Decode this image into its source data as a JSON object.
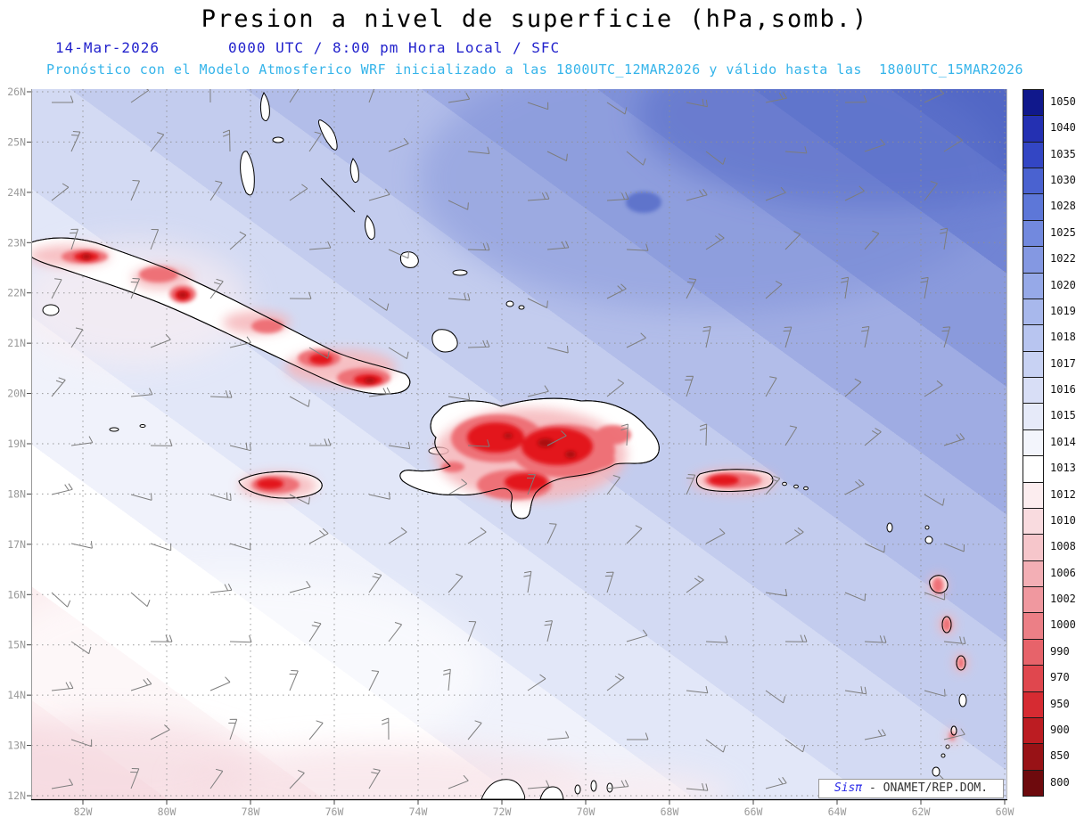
{
  "header": {
    "title": "Presion a nivel de superficie (hPa,somb.)",
    "date": "14-Mar-2026",
    "time": "0000 UTC / 8:00 pm Hora Local / SFC",
    "model_line": "Pronóstico con el Modelo Atmosferico WRF inicializado a las 1800UTC_12MAR2026 y válido hasta las  1800UTC_15MAR2026"
  },
  "map": {
    "lat_labels": [
      "26N",
      "25N",
      "24N",
      "23N",
      "22N",
      "21N",
      "20N",
      "19N",
      "18N",
      "17N",
      "16N",
      "15N",
      "14N",
      "13N",
      "12N"
    ],
    "lon_labels": [
      "82W",
      "80W",
      "78W",
      "76W",
      "74W",
      "72W",
      "70W",
      "68W",
      "66W",
      "64W",
      "62W",
      "60W"
    ],
    "credit": {
      "brand": "Sisπ",
      "org": "- ONAMET/REP.DOM."
    }
  },
  "colorbar": {
    "labels": [
      "1050",
      "1040",
      "1035",
      "1030",
      "1028",
      "1025",
      "1022",
      "1020",
      "1019",
      "1018",
      "1017",
      "1016",
      "1015",
      "1014",
      "1013",
      "1012",
      "1010",
      "1008",
      "1006",
      "1002",
      "1000",
      "990",
      "970",
      "950",
      "900",
      "850",
      "800"
    ],
    "colors": [
      "#10188c",
      "#2430b2",
      "#3346c4",
      "#4a62d0",
      "#5d77d8",
      "#7289de",
      "#8498e2",
      "#96a9e8",
      "#a8b8ec",
      "#b8c5f0",
      "#c8d2f3",
      "#d8def6",
      "#e6eaf9",
      "#f3f5fc",
      "#ffffff",
      "#fcedef",
      "#f9dbdf",
      "#f6c6cb",
      "#f3afb5",
      "#f0989f",
      "#ec7f86",
      "#e7636a",
      "#e0474e",
      "#d62b32",
      "#bc1c22",
      "#981216",
      "#6e0a0d"
    ]
  }
}
